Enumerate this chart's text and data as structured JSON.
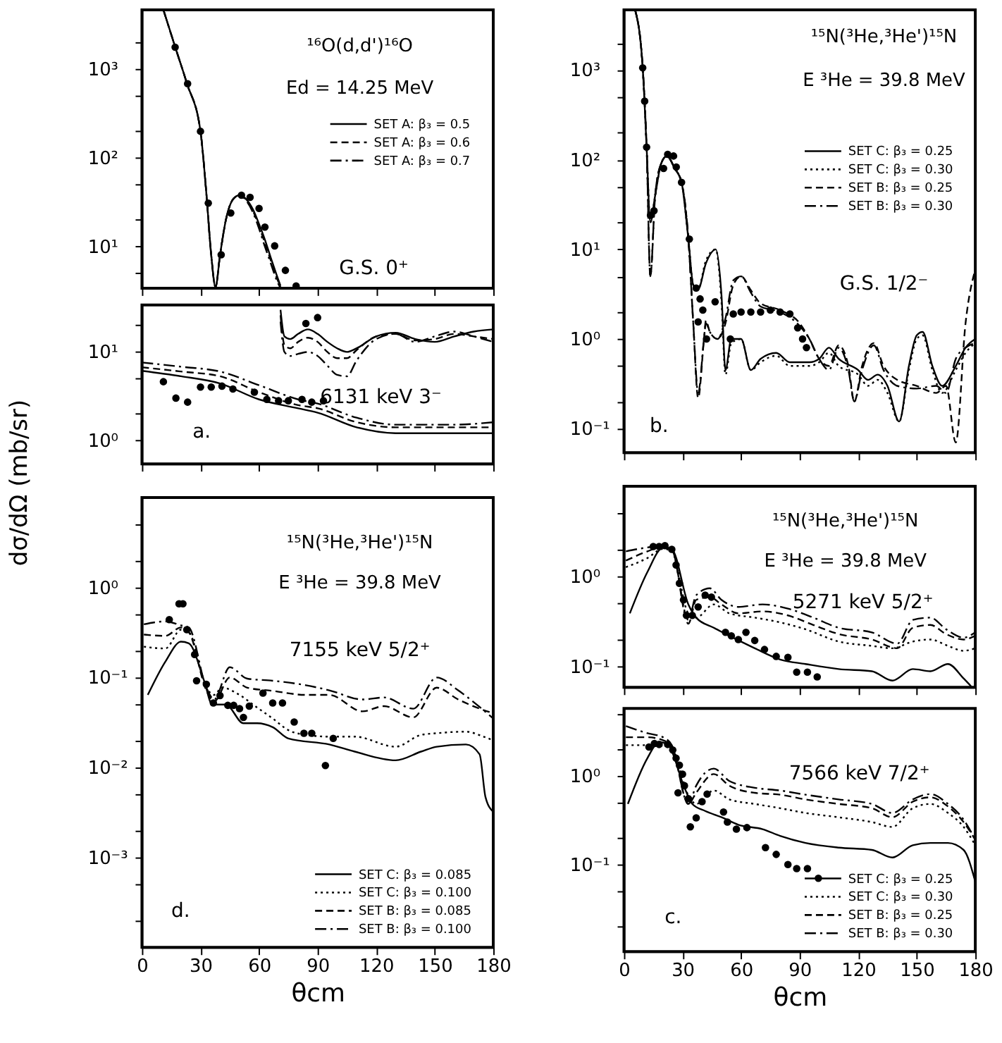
{
  "chart_data": [
    {
      "type": "line",
      "log": true,
      "xlim": [
        0,
        180
      ],
      "xticks": [
        0,
        30,
        60,
        90,
        120,
        150,
        180
      ],
      "ylim": [
        3.4,
        4700
      ],
      "yticks": [
        {
          "value": 5,
          "label": null
        },
        {
          "value": 10,
          "label": "10¹"
        },
        {
          "value": 20,
          "label": null
        },
        {
          "value": 50,
          "label": null
        },
        {
          "value": 100,
          "label": "10²"
        },
        {
          "value": 200,
          "label": null
        },
        {
          "value": 500,
          "label": null
        },
        {
          "value": 1000,
          "label": "10³"
        },
        {
          "value": 2000,
          "label": null
        }
      ],
      "tick_labels": "y",
      "legend": "top right",
      "annotations": [
        "¹⁶O(d,d')¹⁶O",
        "Ed = 14.25 MeV",
        "G.S. 0⁺"
      ],
      "series": [
        {
          "name": "SET A: β₃ = 0.5",
          "line_style": "solid",
          "color": "#000000",
          "x": [
            11,
            17,
            23,
            30,
            33,
            35.5,
            37.7,
            40,
            43,
            47,
            50,
            53,
            57,
            60,
            63,
            66,
            69,
            71
          ],
          "values": [
            4700,
            1800,
            700,
            200,
            40,
            8,
            3.5,
            8,
            20,
            35,
            38,
            35,
            26,
            18,
            12,
            7.5,
            4.8,
            3.6
          ]
        },
        {
          "name": "SET A: β₃ = 0.6",
          "line_style": "dashed",
          "color": "#000000",
          "x": [
            11,
            17,
            23,
            30,
            33,
            35.5,
            37.7,
            40,
            43,
            47,
            50,
            53,
            57,
            60,
            63,
            66,
            69,
            71
          ],
          "values": [
            4700,
            1800,
            700,
            200,
            40,
            8,
            3.5,
            8,
            20,
            35,
            38,
            35,
            25,
            17,
            11,
            7,
            4.5,
            3.5
          ]
        },
        {
          "name": "SET A: β₃ = 0.7",
          "line_style": "dashdot",
          "color": "#000000",
          "x": [
            11,
            17,
            23,
            30,
            33,
            35.5,
            37.7,
            40,
            43,
            47,
            50,
            53,
            57,
            60,
            63,
            66,
            69,
            71
          ],
          "values": [
            4700,
            1800,
            700,
            200,
            40,
            8,
            3.5,
            8,
            20,
            35,
            38,
            34,
            24,
            16,
            10,
            6.5,
            4.2,
            3.4
          ]
        },
        {
          "type": "scatter",
          "marker": "circle",
          "color": "#000000",
          "x": [
            17,
            23.4,
            30,
            34,
            40.6,
            45.5,
            51,
            55.4,
            60,
            63,
            68,
            73.5,
            79
          ],
          "values": [
            1780,
            690,
            200,
            31,
            8.1,
            24,
            38,
            36,
            27,
            16.6,
            10.2,
            5.4,
            3.6
          ]
        }
      ]
    },
    {
      "type": "line",
      "log": true,
      "xlim": [
        0,
        180
      ],
      "xticks": [
        0,
        30,
        60,
        90,
        120,
        150,
        180
      ],
      "ylim": [
        0.54,
        34
      ],
      "yticks": [
        {
          "value": 1,
          "label": "10⁰"
        },
        {
          "value": 2,
          "label": null
        },
        {
          "value": 5,
          "label": null
        },
        {
          "value": 10,
          "label": "10¹"
        },
        {
          "value": 20,
          "label": null
        }
      ],
      "tick_labels": "y",
      "annotations": [
        "6131 keV 3⁻",
        "a."
      ],
      "series": [
        {
          "type": "line",
          "line_style": "solid",
          "color": "#000000",
          "x": [
            71,
            73,
            76,
            80,
            85,
            90,
            95,
            100,
            105,
            110,
            120,
            130,
            140,
            150,
            160,
            170,
            180
          ],
          "values": [
            30,
            15,
            14,
            16,
            18,
            16,
            13,
            11,
            10,
            11,
            15,
            16.5,
            14,
            13,
            15,
            17,
            18
          ]
        },
        {
          "type": "line",
          "line_style": "dashed",
          "color": "#000000",
          "x": [
            71,
            73,
            76,
            80,
            85,
            90,
            95,
            100,
            105,
            110,
            120,
            130,
            140,
            150,
            160,
            170,
            180
          ],
          "values": [
            26,
            12,
            11,
            13,
            14.5,
            13,
            10,
            8.5,
            8.5,
            10.5,
            15,
            16,
            13.5,
            14,
            16,
            15,
            14
          ]
        },
        {
          "type": "line",
          "line_style": "dashdot",
          "color": "#000000",
          "x": [
            71,
            73,
            76,
            80,
            85,
            90,
            95,
            100,
            105,
            110,
            120,
            130,
            140,
            150,
            160,
            170,
            180
          ],
          "values": [
            22,
            10,
            9,
            9.5,
            10,
            9,
            7,
            5.5,
            5.3,
            8,
            14,
            16,
            13,
            15,
            17,
            15,
            13
          ]
        },
        {
          "type": "line",
          "line_style": "solid",
          "color": "#000000",
          "x": [
            0,
            20,
            40,
            60,
            80,
            90,
            110,
            130,
            160,
            180
          ],
          "values": [
            6.1,
            5.3,
            4.4,
            2.9,
            2.3,
            2.05,
            1.4,
            1.2,
            1.2,
            1.2
          ]
        },
        {
          "type": "line",
          "line_style": "dashed",
          "color": "#000000",
          "x": [
            0,
            20,
            40,
            60,
            80,
            90,
            110,
            130,
            160,
            180
          ],
          "values": [
            6.7,
            6.0,
            5.3,
            3.5,
            2.5,
            2.3,
            1.6,
            1.4,
            1.4,
            1.4
          ]
        },
        {
          "type": "line",
          "line_style": "dashdot",
          "color": "#000000",
          "x": [
            0,
            20,
            40,
            60,
            80,
            90,
            110,
            130,
            160,
            180
          ],
          "values": [
            7.6,
            6.8,
            6.0,
            4.2,
            2.9,
            2.6,
            1.8,
            1.5,
            1.5,
            1.6
          ]
        },
        {
          "type": "scatter",
          "marker": "circle",
          "color": "#000000",
          "x": [
            84,
            90
          ],
          "values": [
            21,
            24.5
          ]
        },
        {
          "type": "scatter",
          "marker": "circle",
          "color": "#000000",
          "x": [
            11,
            17.4,
            23.4,
            30,
            35.5,
            41,
            46.6,
            57.6,
            64,
            70,
            75,
            82,
            87,
            93
          ],
          "values": [
            4.6,
            3.0,
            2.7,
            4.0,
            4.0,
            4.1,
            3.8,
            3.5,
            2.9,
            2.8,
            2.8,
            2.9,
            2.7,
            2.8
          ]
        }
      ]
    },
    {
      "type": "line",
      "log": true,
      "xlim": [
        0,
        180
      ],
      "xticks": [
        0,
        30,
        60,
        90,
        120,
        150,
        180
      ],
      "ylim": [
        0.054,
        4700
      ],
      "yticks": [
        {
          "value": 0.1,
          "label": "10⁻¹"
        },
        {
          "value": 0.2,
          "label": null
        },
        {
          "value": 0.5,
          "label": null
        },
        {
          "value": 1,
          "label": "10⁰"
        },
        {
          "value": 2,
          "label": null
        },
        {
          "value": 5,
          "label": null
        },
        {
          "value": 10,
          "label": "10¹"
        },
        {
          "value": 20,
          "label": null
        },
        {
          "value": 50,
          "label": null
        },
        {
          "value": 100,
          "label": "10²"
        },
        {
          "value": 200,
          "label": null
        },
        {
          "value": 500,
          "label": null
        },
        {
          "value": 1000,
          "label": "10³"
        },
        {
          "value": 2000,
          "label": null
        }
      ],
      "tick_labels": "y",
      "legend": "right",
      "annotations": [
        "¹⁵N(³He,³He')¹⁵N",
        "E ³He = 39.8 MeV",
        "G.S. 1/2⁻",
        "b."
      ],
      "series": [
        {
          "name": "SET C: β₃ = 0.25",
          "line_style": "solid",
          "color": "#000000",
          "x": [
            5.7,
            9.6,
            11.6,
            13.5,
            16,
            19,
            22,
            26,
            29.5,
            33,
            35.5,
            38,
            42,
            47,
            50,
            52,
            55,
            60,
            65,
            70,
            78,
            85,
            95,
            100,
            105,
            110,
            120,
            125,
            130,
            135,
            141,
            146,
            150,
            153,
            158,
            163,
            170,
            175,
            180
          ],
          "values": [
            4700,
            1060,
            138,
            20,
            40,
            90,
            110,
            80,
            56,
            13,
            4,
            3.6,
            7,
            10,
            3,
            0.45,
            1.0,
            1.0,
            0.45,
            0.6,
            0.7,
            0.55,
            0.55,
            0.6,
            0.8,
            0.6,
            0.45,
            0.35,
            0.4,
            0.3,
            0.12,
            0.5,
            1.1,
            1.2,
            0.5,
            0.3,
            0.5,
            0.8,
            1.0
          ]
        },
        {
          "name": "SET C: β₃ = 0.30",
          "line_style": "dotted",
          "color": "#000000",
          "x": [
            5.7,
            9.6,
            11.6,
            13.5,
            16,
            19,
            22,
            26,
            29.5,
            33,
            35.5,
            38,
            42,
            47,
            50,
            52,
            55,
            60,
            65,
            70,
            78,
            85,
            95,
            100,
            105,
            110,
            120,
            125,
            130,
            135,
            141,
            146,
            150,
            153,
            158,
            163,
            170,
            175,
            180
          ],
          "values": [
            4700,
            1060,
            138,
            20,
            40,
            90,
            110,
            80,
            56,
            13,
            4,
            3.6,
            7.5,
            10,
            2.5,
            0.4,
            0.9,
            1.0,
            0.45,
            0.55,
            0.65,
            0.5,
            0.5,
            0.55,
            0.7,
            0.5,
            0.4,
            0.3,
            0.35,
            0.25,
            0.12,
            0.45,
            1.0,
            1.1,
            0.45,
            0.25,
            0.45,
            0.7,
            0.9
          ]
        },
        {
          "name": "SET B: β₃ = 0.25",
          "line_style": "dashed",
          "color": "#000000",
          "x": [
            5.7,
            9.6,
            11.6,
            13.5,
            16,
            19,
            22,
            26,
            29.5,
            33,
            35.5,
            38,
            41,
            42,
            44,
            48,
            52,
            56,
            60,
            65,
            70,
            80,
            90,
            95,
            100,
            105,
            110,
            115,
            118,
            122,
            128,
            133,
            140,
            150,
            160,
            165,
            170,
            175,
            180
          ],
          "values": [
            4700,
            1060,
            138,
            5,
            40,
            90,
            110,
            80,
            56,
            13,
            1.5,
            0.22,
            1.0,
            1.6,
            1.2,
            1.0,
            1.5,
            4,
            5,
            3.5,
            2.5,
            2.1,
            1.5,
            1.0,
            0.6,
            0.5,
            0.85,
            0.5,
            0.2,
            0.5,
            0.9,
            0.5,
            0.35,
            0.3,
            0.25,
            0.3,
            0.07,
            1.5,
            6
          ]
        },
        {
          "name": "SET B: β₃ = 0.30",
          "line_style": "dashdot",
          "color": "#000000",
          "x": [
            5.7,
            9.6,
            11.6,
            13.5,
            16,
            19,
            22,
            26,
            29.5,
            33,
            35.5,
            38,
            41,
            42,
            44,
            48,
            52,
            56,
            60,
            65,
            70,
            80,
            90,
            95,
            100,
            105,
            110,
            115,
            118,
            122,
            128,
            133,
            140,
            150,
            160,
            165,
            170,
            175,
            180
          ],
          "values": [
            4700,
            1060,
            138,
            5,
            40,
            90,
            110,
            80,
            56,
            13,
            1.5,
            0.25,
            1.0,
            1.5,
            1.2,
            1.0,
            1.7,
            4.5,
            5,
            3.3,
            2.3,
            2.0,
            1.4,
            1.0,
            0.6,
            0.45,
            0.8,
            0.45,
            0.2,
            0.45,
            0.85,
            0.45,
            0.3,
            0.28,
            0.3,
            0.25,
            0.6,
            0.8,
            0.9
          ]
        },
        {
          "type": "scatter",
          "marker": "circle",
          "color": "#000000",
          "x": [
            9.6,
            10.6,
            11.6,
            13.6,
            15.4,
            20.3,
            22.4,
            25.4,
            26.8,
            29.5,
            33.5,
            37,
            38,
            39,
            40.4,
            42.3,
            46.7,
            54.5,
            56,
            60,
            65,
            70,
            75,
            80,
            85,
            89,
            91.5,
            93.5
          ],
          "values": [
            1060,
            450,
            138,
            24,
            27,
            80,
            115,
            110,
            83,
            56,
            13,
            3.7,
            1.55,
            2.8,
            2.1,
            1.0,
            2.6,
            1.0,
            1.9,
            2.0,
            2.0,
            2.0,
            2.1,
            2.0,
            1.9,
            1.33,
            1.0,
            0.8
          ]
        }
      ]
    },
    {
      "type": "line",
      "log": true,
      "xlim": [
        0,
        180
      ],
      "xticks": [
        0,
        30,
        60,
        90,
        120,
        150,
        180
      ],
      "ylim": [
        0.0001,
        10
      ],
      "yticks": [
        {
          "value": 0.0002,
          "label": null
        },
        {
          "value": 0.0005,
          "label": null
        },
        {
          "value": 0.001,
          "label": "10⁻³"
        },
        {
          "value": 0.002,
          "label": null
        },
        {
          "value": 0.005,
          "label": null
        },
        {
          "value": 0.01,
          "label": "10⁻²"
        },
        {
          "value": 0.02,
          "label": null
        },
        {
          "value": 0.05,
          "label": null
        },
        {
          "value": 0.1,
          "label": "10⁻¹"
        },
        {
          "value": 0.2,
          "label": null
        },
        {
          "value": 0.5,
          "label": null
        },
        {
          "value": 1,
          "label": "10⁰"
        },
        {
          "value": 2,
          "label": null
        },
        {
          "value": 5,
          "label": null
        }
      ],
      "xlabel": "θcm",
      "ylabel": "dσ/dΩ (mb/sr)",
      "legend": "bottom right",
      "annotations": [
        "¹⁵N(³He,³He')¹⁵N",
        "E ³He = 39.8 MeV",
        "7155 keV 5/2⁺",
        "d."
      ],
      "series": [
        {
          "name": "SET C: β₃ = 0.085",
          "line_style": "solid",
          "color": "#000000",
          "x": [
            3,
            12,
            20,
            24,
            32,
            36,
            43,
            52,
            59,
            67,
            75,
            96,
            109,
            130,
            143,
            151,
            166,
            173,
            176,
            180
          ],
          "values": [
            0.064,
            0.15,
            0.25,
            0.24,
            0.09,
            0.05,
            0.05,
            0.031,
            0.031,
            0.028,
            0.021,
            0.018,
            0.015,
            0.012,
            0.015,
            0.017,
            0.018,
            0.014,
            0.0047,
            0.0032
          ]
        },
        {
          "name": "SET C: β₃ = 0.100",
          "line_style": "dotted",
          "color": "#000000",
          "x": [
            1,
            12,
            20,
            24,
            33,
            37,
            41,
            50,
            58,
            67,
            75,
            84,
            96,
            109,
            130,
            143,
            151,
            166,
            175,
            180
          ],
          "values": [
            0.22,
            0.21,
            0.34,
            0.32,
            0.077,
            0.064,
            0.077,
            0.064,
            0.048,
            0.035,
            0.026,
            0.023,
            0.022,
            0.022,
            0.017,
            0.023,
            0.024,
            0.025,
            0.022,
            0.02
          ]
        },
        {
          "name": "SET B: β₃ = 0.085",
          "line_style": "dashed",
          "color": "#000000",
          "x": [
            1,
            12,
            20,
            24,
            33,
            37,
            45,
            54,
            67,
            84,
            96,
            113,
            124,
            139,
            151,
            162,
            173,
            180
          ],
          "values": [
            0.3,
            0.29,
            0.36,
            0.32,
            0.072,
            0.054,
            0.1,
            0.077,
            0.071,
            0.064,
            0.064,
            0.042,
            0.048,
            0.036,
            0.077,
            0.057,
            0.045,
            0.04
          ]
        },
        {
          "name": "SET B: β₃ = 0.100",
          "line_style": "dashdot",
          "color": "#000000",
          "x": [
            1,
            12,
            20,
            24,
            33,
            37,
            45,
            54,
            67,
            84,
            96,
            113,
            124,
            139,
            151,
            162,
            173,
            180
          ],
          "values": [
            0.39,
            0.42,
            0.38,
            0.36,
            0.077,
            0.057,
            0.13,
            0.097,
            0.092,
            0.082,
            0.072,
            0.057,
            0.06,
            0.045,
            0.1,
            0.072,
            0.047,
            0.035
          ]
        },
        {
          "type": "scatter",
          "marker": "circle",
          "color": "#000000",
          "x": [
            14,
            19,
            21,
            23,
            27,
            28,
            33,
            36.6,
            40,
            44,
            47,
            50,
            52,
            55,
            62,
            67,
            72,
            78,
            83,
            87,
            94,
            98
          ],
          "values": [
            0.44,
            0.66,
            0.66,
            0.34,
            0.18,
            0.092,
            0.084,
            0.052,
            0.063,
            0.049,
            0.049,
            0.045,
            0.036,
            0.048,
            0.067,
            0.052,
            0.052,
            0.032,
            0.024,
            0.024,
            0.0105,
            0.021
          ]
        }
      ]
    },
    {
      "type": "line",
      "log": true,
      "xlim": [
        0,
        180
      ],
      "xticks": [
        0,
        30,
        60,
        90,
        120,
        150,
        180
      ],
      "ylim": [
        0.059,
        10
      ],
      "yticks": [
        {
          "value": 0.1,
          "label": "10⁻¹"
        },
        {
          "value": 0.2,
          "label": null
        },
        {
          "value": 0.5,
          "label": null
        },
        {
          "value": 1,
          "label": "10⁰"
        },
        {
          "value": 2,
          "label": null
        },
        {
          "value": 5,
          "label": null
        }
      ],
      "tick_labels": "y",
      "annotations": [
        "¹⁵N(³He,³He')¹⁵N",
        "E ³He = 39.8 MeV",
        "5271 keV 5/2⁺"
      ],
      "series": [
        {
          "type": "line",
          "line_style": "solid",
          "color": "#000000",
          "x": [
            3,
            12,
            20,
            24.5,
            33,
            37,
            46,
            54,
            67,
            80,
            93,
            110,
            127,
            137.5,
            148,
            157,
            166,
            174,
            178
          ],
          "values": [
            0.39,
            1.12,
            2.08,
            2.0,
            0.49,
            0.35,
            0.27,
            0.22,
            0.16,
            0.12,
            0.107,
            0.094,
            0.089,
            0.07,
            0.094,
            0.089,
            0.107,
            0.074,
            0.06
          ]
        },
        {
          "type": "line",
          "line_style": "dotted",
          "color": "#000000",
          "x": [
            1,
            12,
            20,
            24.5,
            33,
            37,
            46,
            54,
            67,
            80,
            93,
            110,
            127,
            137.5,
            148,
            157,
            166,
            174,
            180
          ],
          "values": [
            1.27,
            1.6,
            2.03,
            1.9,
            0.39,
            0.35,
            0.49,
            0.39,
            0.35,
            0.31,
            0.26,
            0.19,
            0.17,
            0.16,
            0.19,
            0.2,
            0.17,
            0.15,
            0.16
          ]
        },
        {
          "type": "line",
          "line_style": "dashed",
          "color": "#000000",
          "x": [
            1,
            12,
            20,
            24.5,
            33,
            37,
            44,
            50,
            58.6,
            71,
            84,
            97,
            110,
            127,
            140,
            148,
            157,
            165,
            174,
            180
          ],
          "values": [
            1.5,
            1.9,
            2.15,
            2.0,
            0.3,
            0.55,
            0.59,
            0.49,
            0.39,
            0.41,
            0.37,
            0.29,
            0.23,
            0.2,
            0.16,
            0.27,
            0.29,
            0.23,
            0.2,
            0.22
          ]
        },
        {
          "type": "line",
          "line_style": "dashdot",
          "color": "#000000",
          "x": [
            1,
            12,
            20,
            24.5,
            33,
            37,
            44,
            50,
            58.6,
            71,
            84,
            97,
            110,
            127,
            140,
            148,
            157,
            165,
            174,
            180
          ],
          "values": [
            1.9,
            2.1,
            2.2,
            2.0,
            0.33,
            0.62,
            0.74,
            0.55,
            0.46,
            0.49,
            0.44,
            0.35,
            0.27,
            0.24,
            0.18,
            0.33,
            0.35,
            0.26,
            0.21,
            0.24
          ]
        },
        {
          "type": "scatter",
          "marker": "circle",
          "color": "#000000",
          "x": [
            15,
            18,
            21,
            24.5,
            26.7,
            28.4,
            30.5,
            32,
            35,
            38,
            41.6,
            44.8,
            52,
            55,
            58.6,
            62.5,
            67,
            72,
            78,
            84,
            88.5,
            94,
            99
          ],
          "values": [
            2.15,
            2.15,
            2.2,
            2.0,
            1.34,
            0.84,
            0.55,
            0.37,
            0.37,
            0.46,
            0.62,
            0.59,
            0.24,
            0.22,
            0.2,
            0.24,
            0.195,
            0.155,
            0.13,
            0.127,
            0.087,
            0.087,
            0.077
          ]
        }
      ]
    },
    {
      "type": "line",
      "log": true,
      "xlim": [
        0,
        180
      ],
      "xticks": [
        0,
        30,
        60,
        90,
        120,
        150,
        180
      ],
      "ylim": [
        0.0105,
        5.7
      ],
      "yticks": [
        {
          "value": 0.02,
          "label": null
        },
        {
          "value": 0.05,
          "label": null
        },
        {
          "value": 0.1,
          "label": "10⁻¹"
        },
        {
          "value": 0.2,
          "label": null
        },
        {
          "value": 0.5,
          "label": null
        },
        {
          "value": 1,
          "label": "10⁰"
        },
        {
          "value": 2,
          "label": null
        },
        {
          "value": 5,
          "label": null
        }
      ],
      "xlabel": "θcm",
      "legend": "bottom right",
      "annotations": [
        "7566 keV 7/2⁺",
        "c."
      ],
      "series": [
        {
          "name": "SET C: β₃ = 0.25",
          "line_style": "solid",
          "color": "#000000",
          "x": [
            2,
            12,
            18,
            22.4,
            31,
            35,
            41.6,
            50,
            58.6,
            71,
            80,
            93,
            110,
            127,
            137.5,
            148,
            157,
            166,
            174,
            180
          ],
          "values": [
            0.48,
            1.57,
            2.38,
            2.24,
            0.73,
            0.48,
            0.4,
            0.34,
            0.28,
            0.25,
            0.21,
            0.175,
            0.155,
            0.146,
            0.12,
            0.165,
            0.175,
            0.175,
            0.146,
            0.064
          ]
        },
        {
          "name": "SET C: β₃ = 0.30",
          "line_style": "dotted",
          "color": "#000000",
          "x": [
            1,
            12,
            20,
            24.5,
            33,
            37,
            46,
            54,
            67,
            80,
            93,
            110,
            127,
            137.5,
            148,
            157,
            166,
            174,
            180
          ],
          "values": [
            2.2,
            2.2,
            2.4,
            2.1,
            0.6,
            0.48,
            0.68,
            0.54,
            0.48,
            0.43,
            0.38,
            0.34,
            0.3,
            0.265,
            0.43,
            0.48,
            0.38,
            0.265,
            0.165
          ]
        },
        {
          "name": "SET B: β₃ = 0.25",
          "line_style": "dashed",
          "color": "#000000",
          "x": [
            1,
            12,
            20,
            24.5,
            33,
            37,
            46,
            54,
            67,
            80,
            93,
            110,
            127,
            137.5,
            148,
            157,
            166,
            174,
            180
          ],
          "values": [
            2.7,
            2.7,
            2.5,
            2.1,
            0.48,
            0.64,
            1.04,
            0.77,
            0.64,
            0.61,
            0.54,
            0.48,
            0.43,
            0.34,
            0.51,
            0.57,
            0.45,
            0.3,
            0.19
          ]
        },
        {
          "name": "SET B: β₃ = 0.30",
          "line_style": "dashdot",
          "color": "#000000",
          "x": [
            1,
            12,
            20,
            24.5,
            33,
            37,
            46,
            54,
            67,
            80,
            93,
            110,
            127,
            137.5,
            148,
            157,
            166,
            174,
            180
          ],
          "values": [
            3.6,
            3.0,
            2.7,
            2.2,
            0.48,
            0.77,
            1.2,
            0.87,
            0.73,
            0.68,
            0.61,
            0.54,
            0.48,
            0.38,
            0.54,
            0.62,
            0.48,
            0.32,
            0.19
          ]
        },
        {
          "type": "scatter",
          "marker": "circle",
          "color": "#000000",
          "x": [
            12.8,
            15.6,
            18,
            22.4,
            25,
            26.7,
            28.4,
            30,
            27.7,
            31,
            33,
            34,
            37,
            40,
            42.6,
            51,
            53,
            57.6,
            63,
            72.5,
            78,
            84,
            88.5,
            94,
            99.6
          ],
          "values": [
            2.1,
            2.3,
            2.24,
            2.24,
            1.94,
            1.57,
            1.31,
            1.04,
            0.64,
            0.77,
            0.55,
            0.265,
            0.335,
            0.51,
            0.62,
            0.39,
            0.3,
            0.25,
            0.26,
            0.155,
            0.13,
            0.1,
            0.09,
            0.09,
            0.07
          ]
        }
      ]
    }
  ]
}
